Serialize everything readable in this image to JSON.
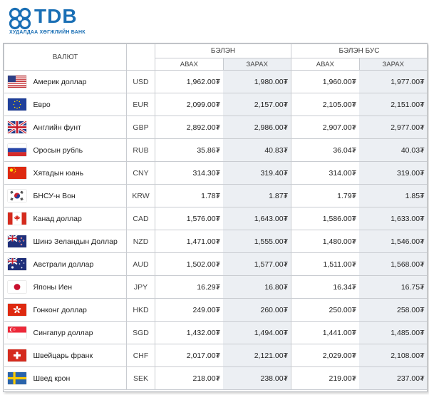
{
  "logo": {
    "text": "TDB",
    "subtitle": "ХУДАЛДАА ХӨГЖЛИЙН БАНК",
    "color": "#1a6fb5"
  },
  "header": {
    "currency": "ВАЛЮТ",
    "cash": "БЭЛЭН",
    "noncash": "БЭЛЭН БУС",
    "buy": "АВАХ",
    "sell": "ЗАРАХ"
  },
  "rates": [
    {
      "flag": "us-flag-icon",
      "name": "Америк доллар",
      "code": "USD",
      "cash_buy": "1,962.00₮",
      "cash_sell": "1,980.00₮",
      "noncash_buy": "1,960.00₮",
      "noncash_sell": "1,977.00₮"
    },
    {
      "flag": "eu-flag-icon",
      "name": "Евро",
      "code": "EUR",
      "cash_buy": "2,099.00₮",
      "cash_sell": "2,157.00₮",
      "noncash_buy": "2,105.00₮",
      "noncash_sell": "2,151.00₮"
    },
    {
      "flag": "gb-flag-icon",
      "name": "Английн фунт",
      "code": "GBP",
      "cash_buy": "2,892.00₮",
      "cash_sell": "2,986.00₮",
      "noncash_buy": "2,907.00₮",
      "noncash_sell": "2,977.00₮"
    },
    {
      "flag": "ru-flag-icon",
      "name": "Оросын рубль",
      "code": "RUB",
      "cash_buy": "35.86₮",
      "cash_sell": "40.83₮",
      "noncash_buy": "36.04₮",
      "noncash_sell": "40.03₮"
    },
    {
      "flag": "cn-flag-icon",
      "name": "Хятадын юань",
      "code": "CNY",
      "cash_buy": "314.30₮",
      "cash_sell": "319.40₮",
      "noncash_buy": "314.00₮",
      "noncash_sell": "319.00₮"
    },
    {
      "flag": "kr-flag-icon",
      "name": "БНСУ-н Вон",
      "code": "KRW",
      "cash_buy": "1.78₮",
      "cash_sell": "1.87₮",
      "noncash_buy": "1.79₮",
      "noncash_sell": "1.85₮"
    },
    {
      "flag": "ca-flag-icon",
      "name": "Канад доллар",
      "code": "CAD",
      "cash_buy": "1,576.00₮",
      "cash_sell": "1,643.00₮",
      "noncash_buy": "1,586.00₮",
      "noncash_sell": "1,633.00₮"
    },
    {
      "flag": "nz-flag-icon",
      "name": "Шинэ Зеландын Доллар",
      "code": "NZD",
      "cash_buy": "1,471.00₮",
      "cash_sell": "1,555.00₮",
      "noncash_buy": "1,480.00₮",
      "noncash_sell": "1,546.00₮"
    },
    {
      "flag": "au-flag-icon",
      "name": "Австрали доллар",
      "code": "AUD",
      "cash_buy": "1,502.00₮",
      "cash_sell": "1,577.00₮",
      "noncash_buy": "1,511.00₮",
      "noncash_sell": "1,568.00₮"
    },
    {
      "flag": "jp-flag-icon",
      "name": "Японы Иен",
      "code": "JPY",
      "cash_buy": "16.29₮",
      "cash_sell": "16.80₮",
      "noncash_buy": "16.34₮",
      "noncash_sell": "16.75₮"
    },
    {
      "flag": "hk-flag-icon",
      "name": "Гонконг доллар",
      "code": "HKD",
      "cash_buy": "249.00₮",
      "cash_sell": "260.00₮",
      "noncash_buy": "250.00₮",
      "noncash_sell": "258.00₮"
    },
    {
      "flag": "sg-flag-icon",
      "name": "Сингапур доллар",
      "code": "SGD",
      "cash_buy": "1,432.00₮",
      "cash_sell": "1,494.00₮",
      "noncash_buy": "1,441.00₮",
      "noncash_sell": "1,485.00₮"
    },
    {
      "flag": "ch-flag-icon",
      "name": "Швейцарь франк",
      "code": "CHF",
      "cash_buy": "2,017.00₮",
      "cash_sell": "2,121.00₮",
      "noncash_buy": "2,029.00₮",
      "noncash_sell": "2,108.00₮"
    },
    {
      "flag": "se-flag-icon",
      "name": "Швед крон",
      "code": "SEK",
      "cash_buy": "218.00₮",
      "cash_sell": "238.00₮",
      "noncash_buy": "219.00₮",
      "noncash_sell": "237.00₮"
    }
  ]
}
